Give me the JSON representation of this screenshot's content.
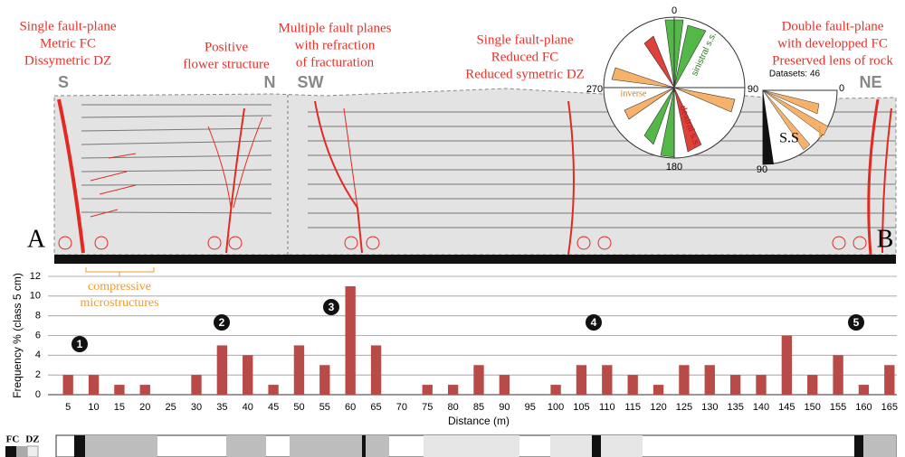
{
  "section": {
    "annotations": [
      {
        "lines": [
          "Single fault-plane",
          "Metric FC",
          "Dissymetric DZ"
        ]
      },
      {
        "lines": [
          "Positive",
          "flower structure"
        ]
      },
      {
        "lines": [
          "Multiple fault planes",
          "with refraction",
          "of fracturation"
        ]
      },
      {
        "lines": [
          "Single fault-plane",
          "Reduced FC",
          "Reduced symetric DZ"
        ]
      },
      {
        "lines": [
          "Double fault-plane",
          "with developped FC",
          "Preserved lens of rock"
        ]
      }
    ],
    "orientations": [
      "S",
      "N",
      "SW",
      "NE"
    ],
    "ends": [
      "A",
      "B"
    ],
    "microstructures": [
      "compressive",
      "microstructures"
    ],
    "rose": {
      "n": "0",
      "w": "270",
      "e": "90",
      "s": "180",
      "inverse": "inverse",
      "sinistral": "sinistral s.s.",
      "dextral": "dextral s.s."
    },
    "quarter": {
      "datasets": "Datasets: 46",
      "zero": "0",
      "ninety": "90",
      "i": "i",
      "ss": "S.S"
    },
    "legend": [
      "FC",
      "DZ"
    ]
  },
  "chart_data": {
    "type": "bar",
    "ylabel": "Frequency % (class 5 cm)",
    "xlabel": "Distance (m)",
    "categories": [
      "5",
      "10",
      "15",
      "20",
      "25",
      "30",
      "35",
      "40",
      "45",
      "50",
      "55",
      "60",
      "65",
      "70",
      "75",
      "80",
      "85",
      "90",
      "95",
      "100",
      "105",
      "110",
      "115",
      "120",
      "125",
      "130",
      "135",
      "140",
      "145",
      "150",
      "155",
      "160",
      "165"
    ],
    "values": [
      2,
      2,
      1,
      1,
      0,
      2,
      5,
      4,
      1,
      5,
      3,
      11,
      5,
      0,
      1,
      1,
      3,
      2,
      0,
      1,
      3,
      3,
      2,
      1,
      3,
      3,
      2,
      2,
      6,
      2,
      4,
      1,
      3
    ],
    "color": "#b84a47",
    "ylim": [
      0,
      12
    ],
    "yticks": [
      0,
      2,
      4,
      6,
      8,
      10,
      12
    ],
    "grid": true,
    "markers": [
      "1",
      "2",
      "3",
      "4",
      "5"
    ]
  }
}
